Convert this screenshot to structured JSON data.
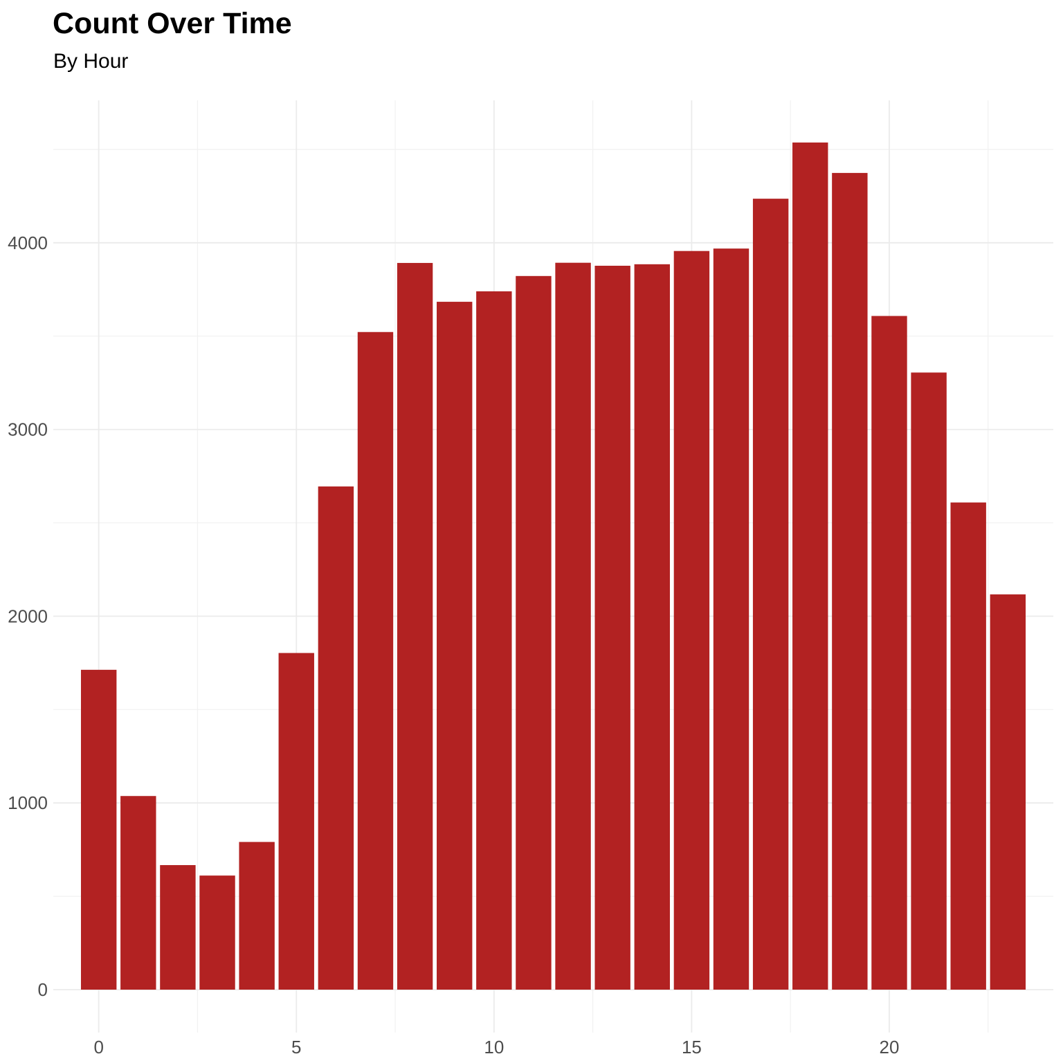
{
  "chart_data": {
    "type": "bar",
    "title": "Count Over Time",
    "subtitle": "By Hour",
    "xlabel": "",
    "ylabel": "",
    "x": [
      0,
      1,
      2,
      3,
      4,
      5,
      6,
      7,
      8,
      9,
      10,
      11,
      12,
      13,
      14,
      15,
      16,
      17,
      18,
      19,
      20,
      21,
      22,
      23
    ],
    "values": [
      1713,
      1037,
      667,
      611,
      791,
      1803,
      2695,
      3522,
      3892,
      3684,
      3740,
      3822,
      3893,
      3877,
      3885,
      3956,
      3969,
      4236,
      4537,
      4374,
      3608,
      3305,
      2609,
      2117
    ],
    "xticks": [
      0,
      5,
      10,
      15,
      20
    ],
    "yticks": [
      0,
      1000,
      2000,
      3000,
      4000
    ],
    "xlim": [
      -1.15,
      24.15
    ],
    "ylim": [
      0,
      4650
    ],
    "bar_color": "#b22222",
    "grid": true,
    "legend": "none"
  }
}
